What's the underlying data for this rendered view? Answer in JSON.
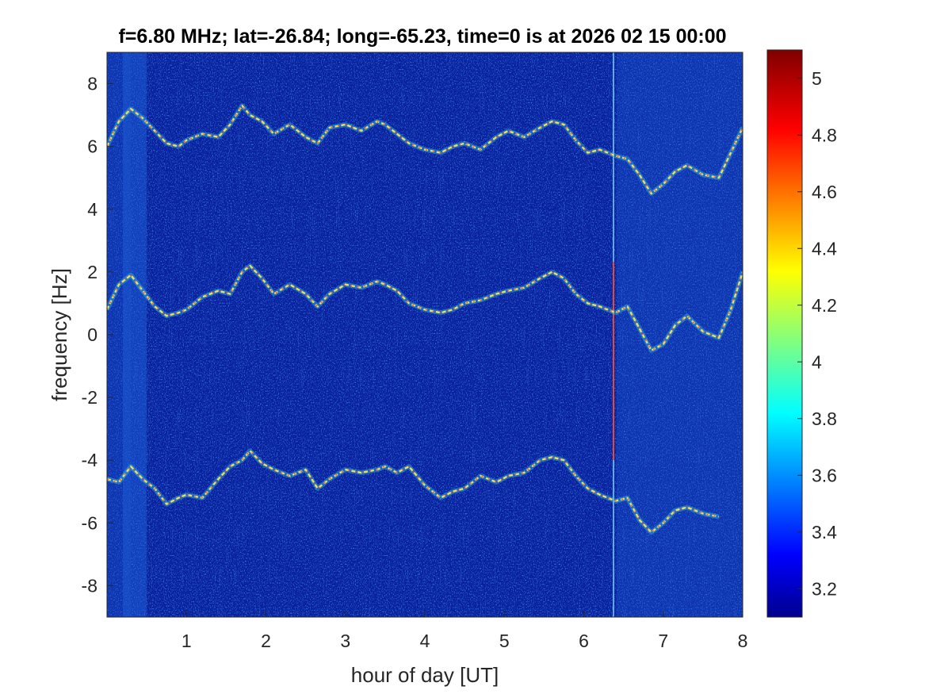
{
  "chart_data": {
    "type": "heatmap",
    "title": "f=6.80 MHz;  lat=-26.84; long=-65.23, time=0 is at 2026 02 15 00:00",
    "xlabel": "hour of day [UT]",
    "ylabel": "frequency [Hz]",
    "xlim": [
      0,
      8
    ],
    "ylim": [
      -9,
      9
    ],
    "xticks": [
      "1",
      "2",
      "3",
      "4",
      "5",
      "6",
      "7",
      "8"
    ],
    "yticks": [
      "-8",
      "-6",
      "-4",
      "-2",
      "0",
      "2",
      "4",
      "6",
      "8"
    ],
    "colormap": "jet",
    "clim": [
      3.1,
      5.1
    ],
    "colorbar_ticks": [
      "3.2",
      "3.4",
      "3.6",
      "3.8",
      "4",
      "4.2",
      "4.4",
      "4.6",
      "4.8",
      "5"
    ],
    "series": [
      {
        "x": [
          0.0,
          0.15,
          0.3,
          0.45,
          0.6,
          0.75,
          0.9,
          1.0,
          1.2,
          1.4,
          1.55,
          1.7,
          1.8,
          1.95,
          2.1,
          2.3,
          2.5,
          2.65,
          2.8,
          3.0,
          3.2,
          3.4,
          3.5,
          3.65,
          3.8,
          4.0,
          4.2,
          4.35,
          4.5,
          4.7,
          4.9,
          5.05,
          5.25,
          5.45,
          5.6,
          5.75,
          5.9,
          6.05,
          6.2,
          6.4,
          6.55,
          6.7,
          6.85,
          7.0,
          7.15,
          7.3,
          7.5,
          7.7,
          7.85,
          8.0
        ],
        "y": [
          6.0,
          6.8,
          7.2,
          6.9,
          6.5,
          6.1,
          6.0,
          6.2,
          6.4,
          6.3,
          6.7,
          7.3,
          7.0,
          6.8,
          6.4,
          6.7,
          6.3,
          6.1,
          6.6,
          6.7,
          6.5,
          6.8,
          6.7,
          6.4,
          6.1,
          5.9,
          5.8,
          6.0,
          6.1,
          5.9,
          6.3,
          6.5,
          6.3,
          6.6,
          6.8,
          6.7,
          6.2,
          5.8,
          5.9,
          5.7,
          5.6,
          5.1,
          4.5,
          4.8,
          5.2,
          5.4,
          5.1,
          5.0,
          5.8,
          6.6
        ]
      },
      {
        "x": [
          0.0,
          0.15,
          0.3,
          0.45,
          0.6,
          0.75,
          0.9,
          1.0,
          1.2,
          1.4,
          1.55,
          1.7,
          1.8,
          1.95,
          2.1,
          2.3,
          2.5,
          2.65,
          2.8,
          3.0,
          3.2,
          3.4,
          3.5,
          3.65,
          3.8,
          4.0,
          4.2,
          4.35,
          4.5,
          4.7,
          4.9,
          5.05,
          5.25,
          5.45,
          5.6,
          5.75,
          5.9,
          6.05,
          6.2,
          6.4,
          6.55,
          6.7,
          6.85,
          7.0,
          7.15,
          7.3,
          7.5,
          7.7,
          7.85,
          8.0
        ],
        "y": [
          0.8,
          1.6,
          1.9,
          1.4,
          0.9,
          0.6,
          0.7,
          0.8,
          1.2,
          1.4,
          1.3,
          2.0,
          2.2,
          1.8,
          1.3,
          1.6,
          1.3,
          0.9,
          1.3,
          1.6,
          1.5,
          1.7,
          1.6,
          1.4,
          1.0,
          0.8,
          0.7,
          0.8,
          1.0,
          1.1,
          1.3,
          1.4,
          1.5,
          1.8,
          2.0,
          1.8,
          1.3,
          1.0,
          0.9,
          0.7,
          0.9,
          0.2,
          -0.5,
          -0.3,
          0.3,
          0.6,
          0.1,
          -0.1,
          0.8,
          2.0
        ]
      },
      {
        "x": [
          0.0,
          0.15,
          0.3,
          0.45,
          0.6,
          0.75,
          0.9,
          1.0,
          1.2,
          1.4,
          1.55,
          1.7,
          1.8,
          1.95,
          2.1,
          2.3,
          2.5,
          2.65,
          2.8,
          3.0,
          3.2,
          3.4,
          3.5,
          3.65,
          3.8,
          4.0,
          4.2,
          4.35,
          4.5,
          4.7,
          4.9,
          5.05,
          5.25,
          5.45,
          5.6,
          5.75,
          5.9,
          6.05,
          6.2,
          6.4,
          6.55,
          6.7,
          6.85,
          7.0,
          7.15,
          7.3,
          7.5,
          7.7
        ],
        "y": [
          -4.6,
          -4.7,
          -4.2,
          -4.6,
          -4.9,
          -5.4,
          -5.2,
          -5.1,
          -5.2,
          -4.6,
          -4.2,
          -4.0,
          -3.7,
          -4.1,
          -4.3,
          -4.5,
          -4.3,
          -4.9,
          -4.6,
          -4.3,
          -4.4,
          -4.3,
          -4.2,
          -4.4,
          -4.2,
          -4.8,
          -5.2,
          -5.0,
          -4.9,
          -4.5,
          -4.7,
          -4.5,
          -4.4,
          -4.0,
          -3.9,
          -4.0,
          -4.5,
          -4.9,
          -5.1,
          -5.3,
          -5.2,
          -5.9,
          -6.3,
          -6.0,
          -5.6,
          -5.5,
          -5.7,
          -5.8
        ]
      }
    ]
  }
}
